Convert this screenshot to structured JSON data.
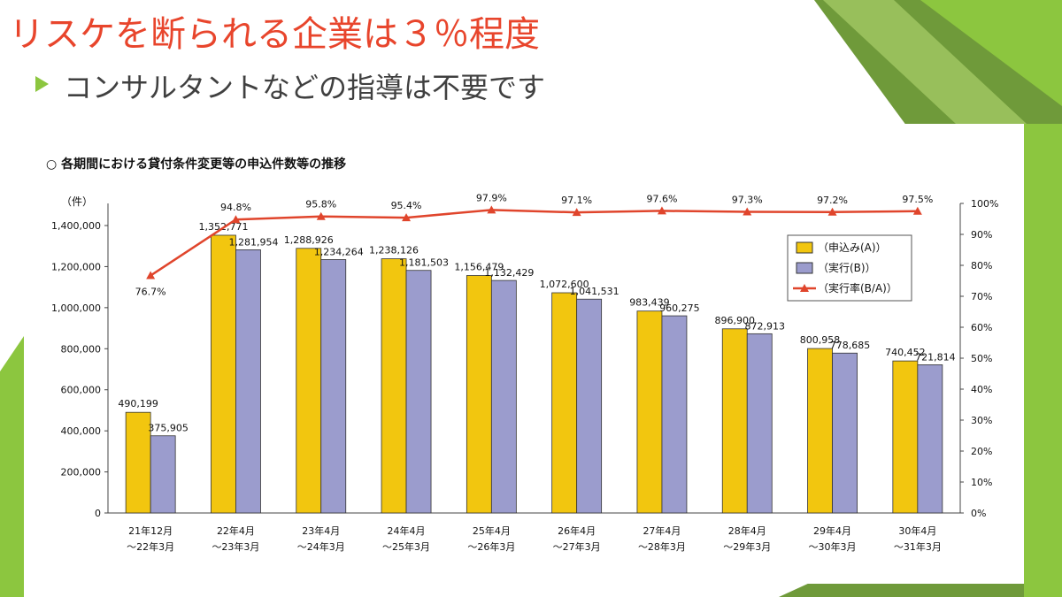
{
  "slide": {
    "title": "リスケを断られる企業は３％程度",
    "subtitle": "コンサルタントなどの指導は不要です"
  },
  "colors": {
    "title": "#e8452c",
    "accent_green": "#8cc63f",
    "bar_a": "#f2c60f",
    "bar_b": "#9b9ccd",
    "line": "#e0452c"
  },
  "chart_data": {
    "type": "bar",
    "title": "○ 各期間における貸付条件変更等の申込件数等の推移",
    "y_unit_label": "（件）",
    "categories": [
      [
        "21年12月",
        "～22年3月"
      ],
      [
        "22年4月",
        "～23年3月"
      ],
      [
        "23年4月",
        "～24年3月"
      ],
      [
        "24年4月",
        "～25年3月"
      ],
      [
        "25年4月",
        "～26年3月"
      ],
      [
        "26年4月",
        "～27年3月"
      ],
      [
        "27年4月",
        "～28年3月"
      ],
      [
        "28年4月",
        "～29年3月"
      ],
      [
        "29年4月",
        "～30年3月"
      ],
      [
        "30年4月",
        "～31年3月"
      ]
    ],
    "series": [
      {
        "name": "（申込み(A)）",
        "values": [
          490199,
          1352771,
          1288926,
          1238126,
          1156479,
          1072600,
          983439,
          896900,
          800958,
          740452
        ],
        "labels": [
          "490,199",
          "1,352,771",
          "1,288,926",
          "1,238,126",
          "1,156,479",
          "1,072,600",
          "983,439",
          "896,900",
          "800,958",
          "740,452"
        ]
      },
      {
        "name": "（実行(B)）",
        "values": [
          375905,
          1281954,
          1234264,
          1181503,
          1132429,
          1041531,
          960275,
          872913,
          778685,
          721814
        ],
        "labels": [
          "375,905",
          "1,281,954",
          "1,234,264",
          "1,181,503",
          "1,132,429",
          "1,041,531",
          "960,275",
          "872,913",
          "778,685",
          "721,814"
        ]
      },
      {
        "name": "（実行率(B/A)）",
        "axis": "right",
        "values": [
          76.7,
          94.8,
          95.8,
          95.4,
          97.9,
          97.1,
          97.6,
          97.3,
          97.2,
          97.5
        ],
        "labels": [
          "76.7%",
          "94.8%",
          "95.8%",
          "95.4%",
          "97.9%",
          "97.1%",
          "97.6%",
          "97.3%",
          "97.2%",
          "97.5%"
        ]
      }
    ],
    "ylim": [
      0,
      1500000
    ],
    "y_ticks": [
      "0",
      "200,000",
      "400,000",
      "600,000",
      "800,000",
      "1,000,000",
      "1,200,000",
      "1,400,000"
    ],
    "y_tick_values": [
      0,
      200000,
      400000,
      600000,
      800000,
      1000000,
      1200000,
      1400000
    ],
    "y2lim": [
      0,
      100
    ],
    "y2_ticks": [
      "0%",
      "10%",
      "20%",
      "30%",
      "40%",
      "50%",
      "60%",
      "70%",
      "80%",
      "90%",
      "100%"
    ],
    "legend_position": "right"
  }
}
